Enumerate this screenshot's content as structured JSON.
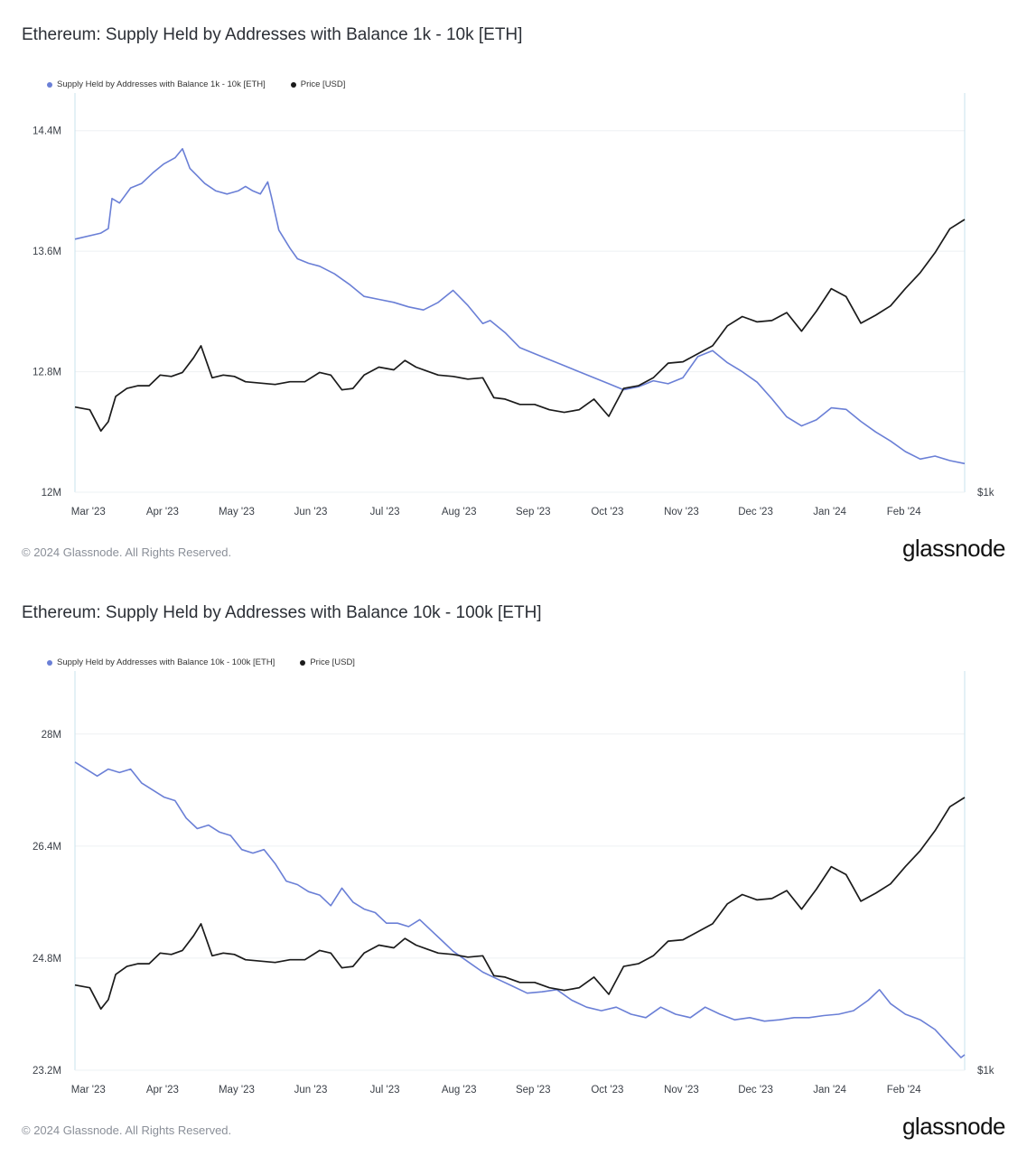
{
  "charts": [
    {
      "title": "Ethereum: Supply Held by Addresses with Balance 1k - 10k [ETH]",
      "legend": [
        {
          "label": "Supply Held by Addresses with Balance 1k - 10k [ETH]",
          "color": "#6a7fd6"
        },
        {
          "label": "Price [USD]",
          "color": "#1b1b1b"
        }
      ],
      "footer": "© 2024 Glassnode. All Rights Reserved.",
      "brand": "glassnode"
    },
    {
      "title": "Ethereum: Supply Held by Addresses with Balance 10k - 100k [ETH]",
      "legend": [
        {
          "label": "Supply Held by Addresses with Balance 10k - 100k [ETH]",
          "color": "#6a7fd6"
        },
        {
          "label": "Price [USD]",
          "color": "#1b1b1b"
        }
      ],
      "footer": "© 2024 Glassnode. All Rights Reserved.",
      "brand": "glassnode"
    }
  ],
  "chart_data": [
    {
      "type": "line",
      "title": "Ethereum: Supply Held by Addresses with Balance 1k - 10k [ETH]",
      "x_ticks": [
        "Mar '23",
        "Apr '23",
        "May '23",
        "Jun '23",
        "Jul '23",
        "Aug '23",
        "Sep '23",
        "Oct '23",
        "Nov '23",
        "Dec '23",
        "Jan '24",
        "Feb '24"
      ],
      "y_ticks": [
        "12M",
        "12.8M",
        "13.6M",
        "14.4M"
      ],
      "y_right_ticks": [
        "$1k"
      ],
      "ylim": [
        12.0,
        14.65
      ],
      "price_ylim": [
        1000,
        4000
      ],
      "x_range": [
        0,
        12
      ],
      "series": [
        {
          "name": "Supply Held by Addresses with Balance 1k - 10k [ETH]",
          "unit": "M ETH",
          "color": "#6a7fd6",
          "x": [
            0,
            0.35,
            0.45,
            0.5,
            0.6,
            0.75,
            0.9,
            1.05,
            1.2,
            1.35,
            1.45,
            1.55,
            1.65,
            1.75,
            1.9,
            2.05,
            2.2,
            2.3,
            2.4,
            2.5,
            2.6,
            2.65,
            2.75,
            2.9,
            3.0,
            3.15,
            3.3,
            3.5,
            3.7,
            3.9,
            4.1,
            4.3,
            4.5,
            4.7,
            4.9,
            5.1,
            5.3,
            5.5,
            5.6,
            5.8,
            6.0,
            6.2,
            6.4,
            6.6,
            6.8,
            7.0,
            7.2,
            7.4,
            7.6,
            7.8,
            8.0,
            8.2,
            8.4,
            8.6,
            8.8,
            9.0,
            9.2,
            9.4,
            9.6,
            9.8,
            10.0,
            10.2,
            10.4,
            10.6,
            10.8,
            11.0,
            11.2,
            11.4,
            11.6,
            11.8,
            12.0
          ],
          "values": [
            13.68,
            13.72,
            13.75,
            13.95,
            13.92,
            14.02,
            14.05,
            14.12,
            14.18,
            14.22,
            14.28,
            14.15,
            14.1,
            14.05,
            14.0,
            13.98,
            14.0,
            14.03,
            14.0,
            13.98,
            14.06,
            13.96,
            13.74,
            13.62,
            13.55,
            13.52,
            13.5,
            13.45,
            13.38,
            13.3,
            13.28,
            13.26,
            13.23,
            13.21,
            13.26,
            13.34,
            13.24,
            13.12,
            13.14,
            13.06,
            12.96,
            12.92,
            12.88,
            12.84,
            12.8,
            12.76,
            12.72,
            12.68,
            12.7,
            12.74,
            12.72,
            12.76,
            12.9,
            12.94,
            12.86,
            12.8,
            12.73,
            12.62,
            12.5,
            12.44,
            12.48,
            12.56,
            12.55,
            12.47,
            12.4,
            12.34,
            12.27,
            12.22,
            12.24,
            12.21,
            12.19
          ]
        },
        {
          "name": "Price [USD]",
          "unit": "USD",
          "color": "#1b1b1b",
          "x": [
            0,
            0.2,
            0.35,
            0.45,
            0.55,
            0.7,
            0.85,
            1.0,
            1.15,
            1.3,
            1.45,
            1.6,
            1.7,
            1.85,
            2.0,
            2.15,
            2.3,
            2.5,
            2.7,
            2.9,
            3.1,
            3.3,
            3.45,
            3.6,
            3.75,
            3.9,
            4.1,
            4.3,
            4.45,
            4.6,
            4.75,
            4.9,
            5.1,
            5.3,
            5.5,
            5.65,
            5.8,
            6.0,
            6.2,
            6.4,
            6.6,
            6.8,
            7.0,
            7.2,
            7.4,
            7.6,
            7.8,
            8.0,
            8.2,
            8.4,
            8.6,
            8.8,
            9.0,
            9.2,
            9.4,
            9.6,
            9.8,
            10.0,
            10.2,
            10.4,
            10.6,
            10.8,
            11.0,
            11.2,
            11.4,
            11.6,
            11.8,
            12.0
          ],
          "values": [
            1640,
            1620,
            1460,
            1530,
            1720,
            1780,
            1800,
            1800,
            1880,
            1870,
            1900,
            2010,
            2100,
            1860,
            1880,
            1870,
            1830,
            1820,
            1810,
            1830,
            1830,
            1900,
            1880,
            1770,
            1780,
            1880,
            1940,
            1920,
            1990,
            1940,
            1910,
            1880,
            1870,
            1850,
            1860,
            1710,
            1700,
            1660,
            1660,
            1620,
            1600,
            1620,
            1700,
            1570,
            1780,
            1800,
            1860,
            1970,
            1980,
            2040,
            2100,
            2250,
            2320,
            2280,
            2290,
            2350,
            2210,
            2360,
            2530,
            2470,
            2270,
            2330,
            2400,
            2530,
            2650,
            2800,
            2980,
            3050
          ]
        }
      ],
      "xlabel": "",
      "ylabel": ""
    },
    {
      "type": "line",
      "title": "Ethereum: Supply Held by Addresses with Balance 10k - 100k [ETH]",
      "x_ticks": [
        "Mar '23",
        "Apr '23",
        "May '23",
        "Jun '23",
        "Jul '23",
        "Aug '23",
        "Sep '23",
        "Oct '23",
        "Nov '23",
        "Dec '23",
        "Jan '24",
        "Feb '24"
      ],
      "y_ticks": [
        "23.2M",
        "24.8M",
        "26.4M",
        "28M"
      ],
      "y_right_ticks": [
        "$1k"
      ],
      "ylim": [
        23.2,
        28.9
      ],
      "price_ylim": [
        1000,
        4000
      ],
      "x_range": [
        0,
        12
      ],
      "series": [
        {
          "name": "Supply Held by Addresses with Balance 10k - 100k [ETH]",
          "unit": "M ETH",
          "color": "#6a7fd6",
          "x": [
            0,
            0.15,
            0.3,
            0.45,
            0.6,
            0.75,
            0.9,
            1.05,
            1.2,
            1.35,
            1.5,
            1.65,
            1.8,
            1.95,
            2.1,
            2.25,
            2.4,
            2.55,
            2.7,
            2.85,
            3.0,
            3.15,
            3.3,
            3.45,
            3.6,
            3.75,
            3.9,
            4.05,
            4.2,
            4.35,
            4.5,
            4.65,
            4.8,
            4.95,
            5.1,
            5.3,
            5.5,
            5.7,
            5.9,
            6.1,
            6.3,
            6.5,
            6.7,
            6.9,
            7.1,
            7.3,
            7.5,
            7.7,
            7.9,
            8.1,
            8.3,
            8.5,
            8.7,
            8.9,
            9.1,
            9.3,
            9.5,
            9.7,
            9.9,
            10.1,
            10.3,
            10.5,
            10.7,
            10.85,
            11.0,
            11.2,
            11.4,
            11.6,
            11.8,
            11.95,
            12.0
          ],
          "values": [
            27.6,
            27.5,
            27.4,
            27.5,
            27.45,
            27.5,
            27.3,
            27.2,
            27.1,
            27.05,
            26.8,
            26.65,
            26.7,
            26.6,
            26.55,
            26.35,
            26.3,
            26.35,
            26.15,
            25.9,
            25.85,
            25.75,
            25.7,
            25.55,
            25.8,
            25.6,
            25.5,
            25.45,
            25.3,
            25.3,
            25.25,
            25.35,
            25.2,
            25.05,
            24.9,
            24.75,
            24.6,
            24.5,
            24.4,
            24.3,
            24.32,
            24.35,
            24.2,
            24.1,
            24.05,
            24.1,
            24.0,
            23.95,
            24.1,
            24.0,
            23.95,
            24.1,
            24.0,
            23.92,
            23.95,
            23.9,
            23.92,
            23.95,
            23.95,
            23.98,
            24.0,
            24.05,
            24.2,
            24.35,
            24.15,
            24.0,
            23.92,
            23.78,
            23.55,
            23.38,
            23.42
          ]
        },
        {
          "name": "Price [USD]",
          "unit": "USD",
          "color": "#1b1b1b",
          "x": [
            0,
            0.2,
            0.35,
            0.45,
            0.55,
            0.7,
            0.85,
            1.0,
            1.15,
            1.3,
            1.45,
            1.6,
            1.7,
            1.85,
            2.0,
            2.15,
            2.3,
            2.5,
            2.7,
            2.9,
            3.1,
            3.3,
            3.45,
            3.6,
            3.75,
            3.9,
            4.1,
            4.3,
            4.45,
            4.6,
            4.75,
            4.9,
            5.1,
            5.3,
            5.5,
            5.65,
            5.8,
            6.0,
            6.2,
            6.4,
            6.6,
            6.8,
            7.0,
            7.2,
            7.4,
            7.6,
            7.8,
            8.0,
            8.2,
            8.4,
            8.6,
            8.8,
            9.0,
            9.2,
            9.4,
            9.6,
            9.8,
            10.0,
            10.2,
            10.4,
            10.6,
            10.8,
            11.0,
            11.2,
            11.4,
            11.6,
            11.8,
            12.0
          ],
          "values": [
            1640,
            1620,
            1460,
            1530,
            1720,
            1780,
            1800,
            1800,
            1880,
            1870,
            1900,
            2010,
            2100,
            1860,
            1880,
            1870,
            1830,
            1820,
            1810,
            1830,
            1830,
            1900,
            1880,
            1770,
            1780,
            1880,
            1940,
            1920,
            1990,
            1940,
            1910,
            1880,
            1870,
            1850,
            1860,
            1710,
            1700,
            1660,
            1660,
            1620,
            1600,
            1620,
            1700,
            1570,
            1780,
            1800,
            1860,
            1970,
            1980,
            2040,
            2100,
            2250,
            2320,
            2280,
            2290,
            2350,
            2210,
            2360,
            2530,
            2470,
            2270,
            2330,
            2400,
            2530,
            2650,
            2800,
            2980,
            3050
          ]
        }
      ],
      "xlabel": "",
      "ylabel": ""
    }
  ]
}
